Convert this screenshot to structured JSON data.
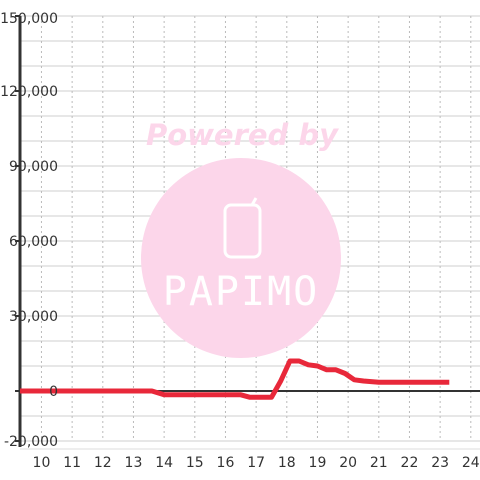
{
  "watermark": {
    "powered_by": "Powered by",
    "brand": "PAPIMO",
    "icon": "phone-icon",
    "color": "#fcd6ea"
  },
  "chart_data": {
    "type": "line",
    "title": "",
    "xlabel": "",
    "ylabel": "",
    "xlim": [
      9.3,
      24.3
    ],
    "ylim": [
      -20000,
      150000
    ],
    "x_ticks": [
      10,
      11,
      12,
      13,
      14,
      15,
      16,
      17,
      18,
      19,
      20,
      21,
      22,
      23,
      24
    ],
    "y_ticks": [
      -20000,
      0,
      30000,
      60000,
      90000,
      120000,
      150000
    ],
    "x_tick_labels": [
      "10",
      "11",
      "12",
      "13",
      "14",
      "15",
      "16",
      "17",
      "18",
      "19",
      "20",
      "21",
      "22",
      "23",
      "24"
    ],
    "y_tick_labels": [
      "-20,000",
      "0",
      "30,000",
      "60,000",
      "90,000",
      "120,000",
      "150,000"
    ],
    "grid": true,
    "series": [
      {
        "color": "#e8283a",
        "x": [
          9.3,
          10,
          11,
          12,
          13,
          13.6,
          14,
          14.5,
          15,
          15.5,
          16,
          16.5,
          16.8,
          17.1,
          17.5,
          17.8,
          18.1,
          18.4,
          18.7,
          19,
          19.3,
          19.6,
          19.9,
          20.2,
          20.5,
          21,
          21.5,
          22,
          22.5,
          23,
          23.3
        ],
        "y": [
          0,
          0,
          0,
          0,
          0,
          0,
          -1500,
          -1500,
          -1500,
          -1500,
          -1500,
          -1500,
          -2500,
          -2500,
          -2500,
          4000,
          12000,
          12000,
          10500,
          10000,
          8500,
          8500,
          7000,
          4500,
          4000,
          3500,
          3500,
          3500,
          3500,
          3500,
          3500
        ]
      }
    ]
  }
}
